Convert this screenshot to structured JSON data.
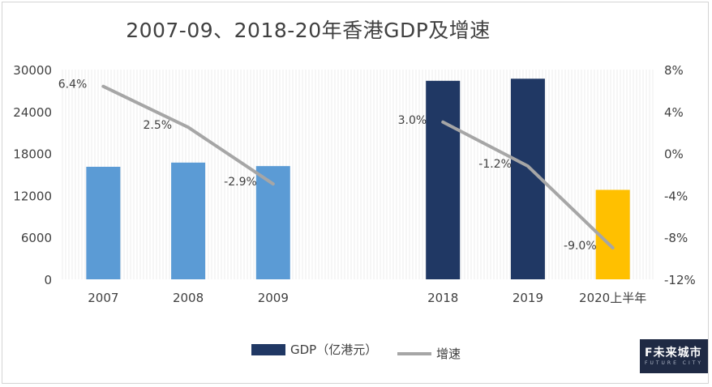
{
  "chart_data": {
    "type": "bar",
    "title": "2007-09、2018-20年香港GDP及增速",
    "categories": [
      "2007",
      "2008",
      "2009",
      "",
      "2018",
      "2019",
      "2020上半年"
    ],
    "series": [
      {
        "name": "GDP（亿港元）",
        "type": "bar",
        "axis": "left",
        "values": [
          16100,
          16700,
          16200,
          null,
          28400,
          28700,
          12800
        ],
        "colors": [
          "#5b9bd5",
          "#5b9bd5",
          "#5b9bd5",
          null,
          "#203864",
          "#203864",
          "#ffc000"
        ]
      },
      {
        "name": "增速",
        "type": "line",
        "axis": "right",
        "values": [
          6.4,
          2.5,
          -2.9,
          null,
          3.0,
          -1.2,
          -9.0
        ],
        "labels": [
          "6.4%",
          "2.5%",
          "-2.9%",
          "",
          "3.0%",
          "-1.2%",
          "-9.0%"
        ],
        "color": "#a6a6a6"
      }
    ],
    "ylim": [
      0,
      30000
    ],
    "yticks": [
      "30000",
      "24000",
      "18000",
      "12000",
      "6000",
      "0"
    ],
    "y2lim": [
      -12,
      8
    ],
    "y2ticks": [
      "8%",
      "4%",
      "0%",
      "-4%",
      "-8%",
      "-12%"
    ],
    "legend": {
      "position": "bottom",
      "bar_label": "GDP（亿港元）",
      "line_label": "增速",
      "bar_color": "#203864",
      "line_color": "#a6a6a6"
    }
  },
  "logo": {
    "main": "F未来城市",
    "sub": "FUTURE CITY"
  }
}
